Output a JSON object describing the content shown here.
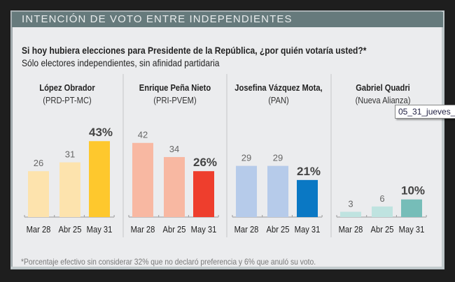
{
  "header": {
    "title": "INTENCIÓN DE VOTO ENTRE INDEPENDIENTES"
  },
  "question": "Si hoy hubiera elecciones para Presidente de la República, ¿por quién votaría usted?*",
  "subtitle": "Sólo electores independientes, sin afinidad partidaria",
  "footnote": "*Porcentaje efectivo sin considerar 32% que no declaró preferencia y 6% que anuló su voto.",
  "tooltip": "05_31_jueves_",
  "chart_data": {
    "type": "bar",
    "title": "INTENCIÓN DE VOTO ENTRE INDEPENDIENTES",
    "subtitle": "Sólo electores independientes, sin afinidad partidaria",
    "xlabel": "",
    "ylabel": "",
    "ylim": [
      0,
      45
    ],
    "grid": false,
    "categories": [
      "Mar 28",
      "Abr 25",
      "May 31"
    ],
    "series": [
      {
        "name": "López Obrador",
        "party": "(PRD-PT-MC)",
        "values": [
          26,
          31,
          43
        ],
        "labels": [
          "26",
          "31",
          "43%"
        ],
        "colors": [
          "#fde3ad",
          "#fde3ad",
          "#fec82d"
        ]
      },
      {
        "name": "Enrique Peña Nieto",
        "party": "(PRI-PVEM)",
        "values": [
          42,
          34,
          26
        ],
        "labels": [
          "42",
          "34",
          "26%"
        ],
        "colors": [
          "#f8b8a2",
          "#f8b8a2",
          "#ee3e2d"
        ]
      },
      {
        "name": "Josefina Vázquez Mota,",
        "party": "(PAN)",
        "values": [
          29,
          29,
          21
        ],
        "labels": [
          "29",
          "29",
          "21%"
        ],
        "colors": [
          "#b6cbea",
          "#b6cbea",
          "#0a78c4"
        ]
      },
      {
        "name": "Gabriel Quadri",
        "party": "(Nueva Alianza)",
        "values": [
          3,
          6,
          10
        ],
        "labels": [
          "3",
          "6",
          "10%"
        ],
        "colors": [
          "#bfe3e0",
          "#bfe3e0",
          "#76bdb8"
        ]
      }
    ]
  }
}
